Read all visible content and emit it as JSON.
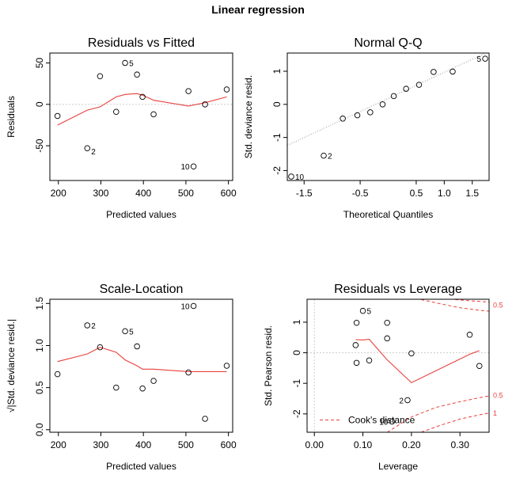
{
  "title": "Linear regression",
  "colors": {
    "smooth": "#e8413c",
    "reference": "#cccccc",
    "points": "#000000",
    "cook": "#e8413c"
  },
  "chart_data": [
    {
      "id": "rvf",
      "type": "scatter",
      "title": "Residuals vs Fitted",
      "xlabel": "Predicted values",
      "ylabel": "Residuals",
      "xlim": [
        180,
        610
      ],
      "ylim": [
        -92,
        62
      ],
      "xticks": [
        200,
        300,
        400,
        500,
        600
      ],
      "xtick_labels": [
        "200",
        "300",
        "400",
        "500",
        "600"
      ],
      "yticks": [
        -50,
        0,
        50
      ],
      "ytick_labels": [
        "-50",
        "0",
        "50"
      ],
      "points": [
        {
          "x": 198,
          "y": -14
        },
        {
          "x": 268,
          "y": -53
        },
        {
          "x": 298,
          "y": 34
        },
        {
          "x": 336,
          "y": -9
        },
        {
          "x": 357,
          "y": 50
        },
        {
          "x": 385,
          "y": 36
        },
        {
          "x": 398,
          "y": 9
        },
        {
          "x": 424,
          "y": -12
        },
        {
          "x": 506,
          "y": 16
        },
        {
          "x": 518,
          "y": -75
        },
        {
          "x": 545,
          "y": 0
        },
        {
          "x": 596,
          "y": 18
        }
      ],
      "point_labels": [
        {
          "index": 4,
          "text": "5",
          "side": "right"
        },
        {
          "index": 1,
          "text": "2",
          "side": "right-below"
        },
        {
          "index": 9,
          "text": "10",
          "side": "left"
        }
      ],
      "smooth": {
        "x": [
          198,
          268,
          298,
          336,
          357,
          385,
          398,
          424,
          506,
          545,
          596
        ],
        "y": [
          -25,
          -7,
          -3,
          9,
          12,
          13,
          11,
          5,
          -2,
          2,
          9
        ]
      },
      "hline": 0
    },
    {
      "id": "qq",
      "type": "scatter",
      "title": "Normal Q-Q",
      "xlabel": "Theoretical Quantiles",
      "ylabel": "Std. deviance resid.",
      "xlim": [
        -1.8,
        1.8
      ],
      "ylim": [
        -2.3,
        1.55
      ],
      "xticks": [
        -1.5,
        -0.5,
        0.5,
        1.0,
        1.5
      ],
      "xtick_labels": [
        "-1.5",
        "-0.5",
        "0.5",
        "1.0",
        "1.5"
      ],
      "yticks": [
        -2,
        -1,
        0,
        1
      ],
      "ytick_labels": [
        "-2",
        "-1",
        "0",
        "1"
      ],
      "points": [
        {
          "x": -1.73,
          "y": -2.18
        },
        {
          "x": -1.15,
          "y": -1.55
        },
        {
          "x": -0.81,
          "y": -0.43
        },
        {
          "x": -0.55,
          "y": -0.33
        },
        {
          "x": -0.32,
          "y": -0.24
        },
        {
          "x": -0.1,
          "y": 0.0
        },
        {
          "x": 0.1,
          "y": 0.25
        },
        {
          "x": 0.32,
          "y": 0.47
        },
        {
          "x": 0.55,
          "y": 0.59
        },
        {
          "x": 0.81,
          "y": 0.98
        },
        {
          "x": 1.15,
          "y": 0.99
        },
        {
          "x": 1.73,
          "y": 1.38
        }
      ],
      "point_labels": [
        {
          "index": 11,
          "text": "5",
          "side": "left"
        },
        {
          "index": 1,
          "text": "2",
          "side": "right"
        },
        {
          "index": 0,
          "text": "10",
          "side": "right"
        }
      ],
      "refline": {
        "x": [
          -1.8,
          1.8
        ],
        "y": [
          -1.24,
          1.6
        ]
      }
    },
    {
      "id": "sl",
      "type": "scatter",
      "title": "Scale-Location",
      "xlabel": "Predicted values",
      "ylabel": "√|Std. deviance resid.|",
      "xlim": [
        180,
        610
      ],
      "ylim": [
        -0.03,
        1.55
      ],
      "xticks": [
        200,
        300,
        400,
        500,
        600
      ],
      "xtick_labels": [
        "200",
        "300",
        "400",
        "500",
        "600"
      ],
      "yticks": [
        0.0,
        0.5,
        1.0,
        1.5
      ],
      "ytick_labels": [
        "0.0",
        "0.5",
        "1.0",
        "1.5"
      ],
      "points": [
        {
          "x": 198,
          "y": 0.66
        },
        {
          "x": 268,
          "y": 1.24
        },
        {
          "x": 298,
          "y": 0.98
        },
        {
          "x": 336,
          "y": 0.5
        },
        {
          "x": 357,
          "y": 1.17
        },
        {
          "x": 385,
          "y": 0.99
        },
        {
          "x": 398,
          "y": 0.49
        },
        {
          "x": 424,
          "y": 0.58
        },
        {
          "x": 506,
          "y": 0.68
        },
        {
          "x": 518,
          "y": 1.47
        },
        {
          "x": 545,
          "y": 0.13
        },
        {
          "x": 596,
          "y": 0.76
        }
      ],
      "point_labels": [
        {
          "index": 9,
          "text": "10",
          "side": "left"
        },
        {
          "index": 1,
          "text": "2",
          "side": "right"
        },
        {
          "index": 4,
          "text": "5",
          "side": "right"
        }
      ],
      "smooth": {
        "x": [
          198,
          268,
          298,
          336,
          357,
          385,
          398,
          424,
          506,
          545,
          596
        ],
        "y": [
          0.81,
          0.9,
          0.98,
          0.92,
          0.83,
          0.76,
          0.72,
          0.72,
          0.69,
          0.69,
          0.69
        ]
      }
    },
    {
      "id": "rvl",
      "type": "scatter",
      "title": "Residuals vs Leverage",
      "xlabel": "Leverage",
      "ylabel": "Std. Pearson resid.",
      "xlim": [
        -0.015,
        0.36
      ],
      "ylim": [
        -2.6,
        1.75
      ],
      "xticks": [
        0.0,
        0.1,
        0.2,
        0.3
      ],
      "xtick_labels": [
        "0.00",
        "0.10",
        "0.20",
        "0.30"
      ],
      "yticks": [
        -2,
        -1,
        0,
        1
      ],
      "ytick_labels": [
        "-2",
        "-1",
        "0",
        "1"
      ],
      "points": [
        {
          "x": 0.085,
          "y": 0.25
        },
        {
          "x": 0.087,
          "y": -0.33
        },
        {
          "x": 0.087,
          "y": 0.98
        },
        {
          "x": 0.1,
          "y": 1.37
        },
        {
          "x": 0.113,
          "y": -0.25
        },
        {
          "x": 0.15,
          "y": 0.98
        },
        {
          "x": 0.15,
          "y": 0.47
        },
        {
          "x": 0.2,
          "y": -0.02
        },
        {
          "x": 0.192,
          "y": -1.55
        },
        {
          "x": 0.32,
          "y": 0.59
        },
        {
          "x": 0.34,
          "y": -0.43
        },
        {
          "x": 0.16,
          "y": -2.25
        }
      ],
      "point_labels": [
        {
          "index": 3,
          "text": "5",
          "side": "right"
        },
        {
          "index": 8,
          "text": "2",
          "side": "left"
        },
        {
          "index": 11,
          "text": "10",
          "side": "left"
        }
      ],
      "smooth": {
        "x": [
          0.085,
          0.1,
          0.113,
          0.15,
          0.2,
          0.32,
          0.34
        ],
        "y": [
          0.43,
          0.42,
          0.44,
          -0.23,
          -0.98,
          -0.05,
          0.07
        ]
      },
      "hline": 0,
      "vline": 0,
      "cook_levels": [
        "0.5",
        "1"
      ],
      "cook_curves": [
        {
          "sign": 1,
          "label": "0.5",
          "x": [
            0.22,
            0.26,
            0.3,
            0.34,
            0.36
          ],
          "y": [
            1.74,
            1.6,
            1.47,
            1.39,
            1.36
          ]
        },
        {
          "sign": 1,
          "label": "1",
          "x": [
            0.29,
            0.32,
            0.36
          ],
          "y": [
            1.74,
            1.7,
            1.66
          ]
        },
        {
          "sign": -1,
          "label": "0.5",
          "x": [
            0.15,
            0.2,
            0.25,
            0.3,
            0.34,
            0.36
          ],
          "y": [
            -2.6,
            -2.1,
            -1.79,
            -1.6,
            -1.47,
            -1.41
          ]
        },
        {
          "sign": -1,
          "label": "1",
          "x": [
            0.22,
            0.26,
            0.3,
            0.34,
            0.36
          ],
          "y": [
            -2.6,
            -2.37,
            -2.17,
            -2.03,
            -1.97
          ]
        }
      ],
      "cook_label_positions": [
        {
          "text": "0.5",
          "y": 1.55
        },
        {
          "text": "0.5",
          "y": -1.4
        },
        {
          "text": "1",
          "y": -1.98
        }
      ],
      "legend": {
        "label": "Cook's distance",
        "placement": "bottom-left"
      }
    }
  ]
}
